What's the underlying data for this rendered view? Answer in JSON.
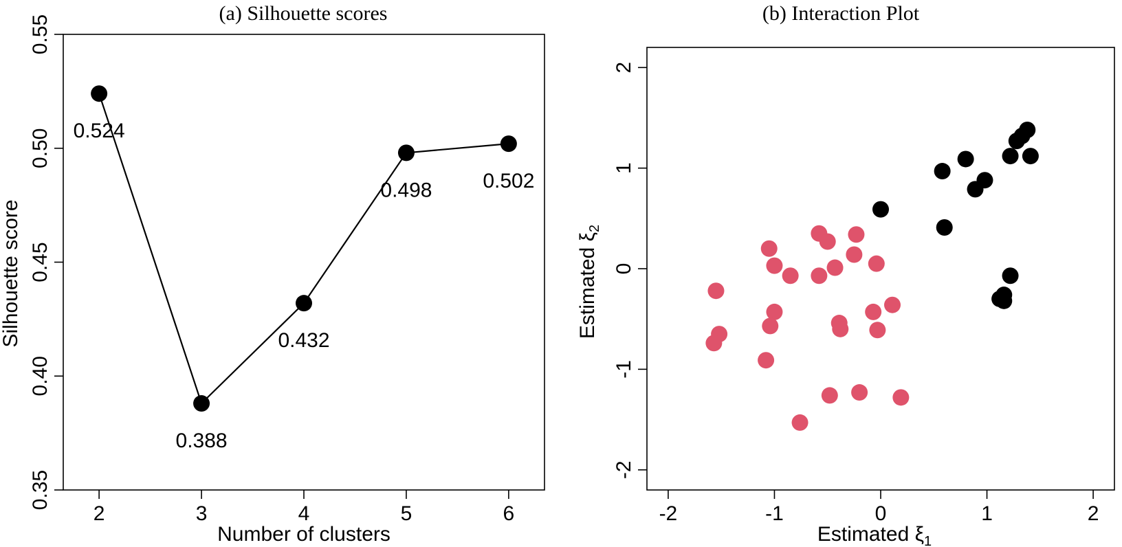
{
  "chart_data": [
    {
      "type": "line",
      "title": "(a) Silhouette scores",
      "xlabel": "Number of clusters",
      "ylabel": "Silhouette score",
      "x": [
        2,
        3,
        4,
        5,
        6
      ],
      "values": [
        0.524,
        0.388,
        0.432,
        0.498,
        0.502
      ],
      "point_labels": [
        "0.524",
        "0.388",
        "0.432",
        "0.498",
        "0.502"
      ],
      "xlim": [
        1.65,
        6.35
      ],
      "ylim": [
        0.35,
        0.55
      ],
      "xticks": [
        2,
        3,
        4,
        5,
        6
      ],
      "xtick_labels": [
        "2",
        "3",
        "4",
        "5",
        "6"
      ],
      "yticks": [
        0.35,
        0.4,
        0.45,
        0.5,
        0.55
      ],
      "ytick_labels": [
        "0.35",
        "0.40",
        "0.45",
        "0.50",
        "0.55"
      ],
      "grid": false,
      "color": "#000000"
    },
    {
      "type": "scatter",
      "title": "(b) Interaction Plot",
      "xlabel_text": "Estimated ξ",
      "xlabel_sub": "1",
      "ylabel_text": "Estimated ξ",
      "ylabel_sub": "2",
      "xlim": [
        -2.2,
        2.2
      ],
      "ylim": [
        -2.2,
        2.2
      ],
      "xticks": [
        -2,
        -1,
        0,
        1,
        2
      ],
      "xtick_labels": [
        "-2",
        "-1",
        "0",
        "1",
        "2"
      ],
      "yticks": [
        -2,
        -1,
        0,
        1,
        2
      ],
      "ytick_labels": [
        "-2",
        "-1",
        "0",
        "1",
        "2"
      ],
      "grid": false,
      "series": [
        {
          "color": "#df536b",
          "points": [
            [
              -1.55,
              -0.22
            ],
            [
              -1.52,
              -0.65
            ],
            [
              -1.57,
              -0.74
            ],
            [
              -1.05,
              0.2
            ],
            [
              -1.0,
              0.03
            ],
            [
              -0.85,
              -0.07
            ],
            [
              -1.0,
              -0.43
            ],
            [
              -1.04,
              -0.57
            ],
            [
              -1.08,
              -0.91
            ],
            [
              -0.58,
              0.35
            ],
            [
              -0.5,
              0.27
            ],
            [
              -0.58,
              -0.07
            ],
            [
              -0.43,
              0.01
            ],
            [
              -0.23,
              0.34
            ],
            [
              -0.25,
              0.14
            ],
            [
              -0.04,
              0.05
            ],
            [
              -0.39,
              -0.54
            ],
            [
              -0.38,
              -0.6
            ],
            [
              -0.07,
              -0.43
            ],
            [
              0.11,
              -0.36
            ],
            [
              -0.03,
              -0.61
            ],
            [
              -0.48,
              -1.26
            ],
            [
              -0.2,
              -1.23
            ],
            [
              0.19,
              -1.28
            ],
            [
              -0.76,
              -1.53
            ]
          ]
        },
        {
          "color": "#000000",
          "points": [
            [
              0.0,
              0.59
            ],
            [
              0.58,
              0.97
            ],
            [
              0.6,
              0.41
            ],
            [
              0.8,
              1.09
            ],
            [
              0.98,
              0.88
            ],
            [
              0.89,
              0.79
            ],
            [
              1.22,
              1.12
            ],
            [
              1.41,
              1.12
            ],
            [
              1.28,
              1.27
            ],
            [
              1.33,
              1.32
            ],
            [
              1.38,
              1.38
            ],
            [
              1.22,
              -0.07
            ],
            [
              1.16,
              -0.26
            ],
            [
              1.12,
              -0.3
            ],
            [
              1.16,
              -0.32
            ]
          ]
        }
      ]
    }
  ]
}
